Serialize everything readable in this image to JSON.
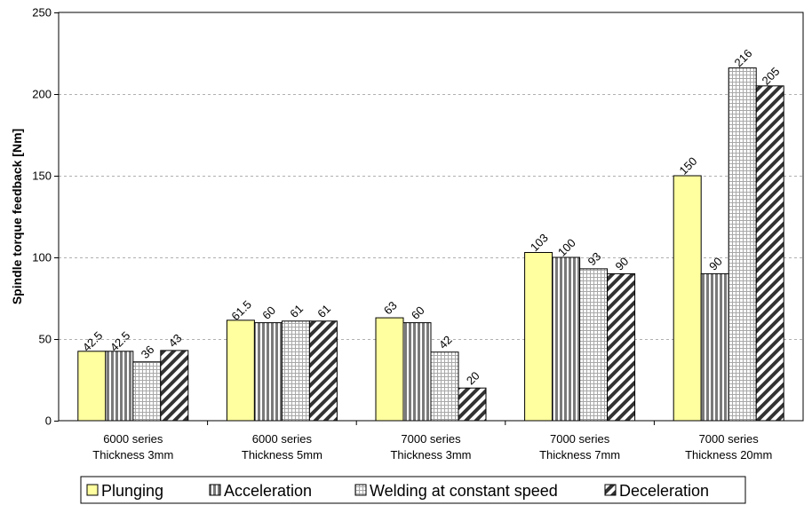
{
  "chart_data": {
    "type": "bar",
    "title": "",
    "xlabel": "",
    "ylabel": "Spindle torque feedback [Nm]",
    "ylim": [
      0,
      250
    ],
    "yticks": [
      0,
      50,
      100,
      150,
      200,
      250
    ],
    "grid": "horizontal-dashed",
    "legend_position": "bottom",
    "categories": [
      [
        "6000 series",
        "Thickness 3mm"
      ],
      [
        "6000 series",
        "Thickness 5mm"
      ],
      [
        "7000 series",
        "Thickness 3mm"
      ],
      [
        "7000 series",
        "Thickness 7mm"
      ],
      [
        "7000 series",
        "Thickness 20mm"
      ]
    ],
    "series": [
      {
        "name": "Plunging",
        "pattern": "solid",
        "color": "#ffffa0",
        "values": [
          42.5,
          61.5,
          63,
          103,
          150
        ],
        "labels": [
          "42.5",
          "61.5",
          "63",
          "103",
          "150"
        ]
      },
      {
        "name": "Acceleration",
        "pattern": "vertical-stripes",
        "color": "#808080",
        "values": [
          42.5,
          60,
          60,
          100,
          90
        ],
        "labels": [
          "42.5",
          "60",
          "60",
          "100",
          "90"
        ]
      },
      {
        "name": "Welding at constant speed",
        "pattern": "grid",
        "color": "#b0b0b0",
        "values": [
          36,
          61,
          42,
          93,
          216
        ],
        "labels": [
          "36",
          "61",
          "42",
          "93",
          "216"
        ]
      },
      {
        "name": "Deceleration",
        "pattern": "diagonal-stripes",
        "color": "#404040",
        "values": [
          43,
          61,
          20,
          90,
          205
        ],
        "labels": [
          "43",
          "61",
          "20",
          "90",
          "205"
        ]
      }
    ]
  }
}
